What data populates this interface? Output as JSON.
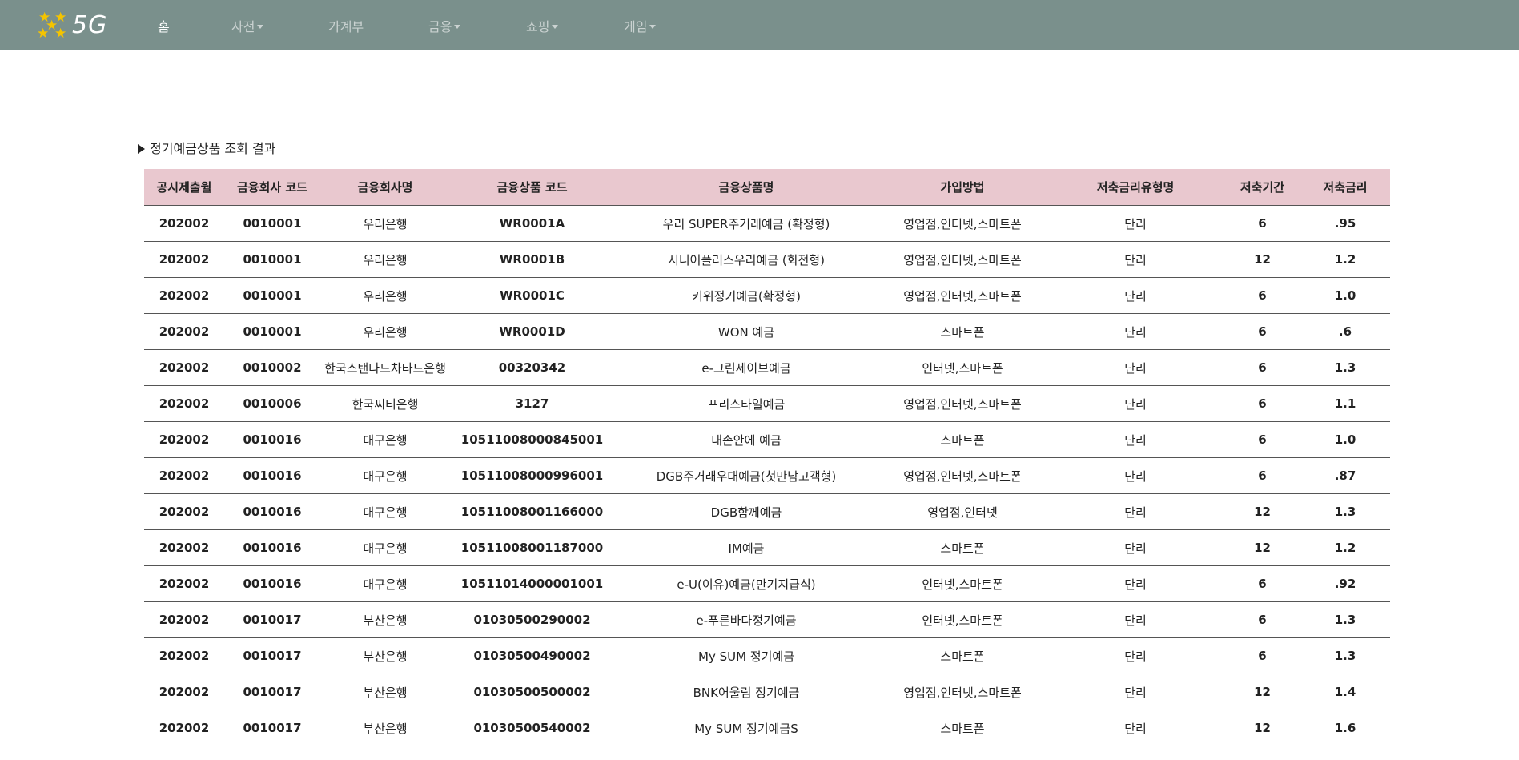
{
  "brand": {
    "name": "5G",
    "logo_icon": "stars-logo-icon"
  },
  "nav": {
    "items": [
      {
        "label": "홈",
        "active": true,
        "dropdown": false
      },
      {
        "label": "사전",
        "active": false,
        "dropdown": true
      },
      {
        "label": "가계부",
        "active": false,
        "dropdown": false
      },
      {
        "label": "금융",
        "active": false,
        "dropdown": true
      },
      {
        "label": "쇼핑",
        "active": false,
        "dropdown": true
      },
      {
        "label": "게임",
        "active": false,
        "dropdown": true
      }
    ]
  },
  "section": {
    "title": "정기예금상품 조회 결과"
  },
  "table": {
    "headers": [
      "공시제출월",
      "금융회사 코드",
      "금융회사명",
      "금융상품 코드",
      "금융상품명",
      "가입방법",
      "저축금리유형명",
      "저축기간",
      "저축금리"
    ],
    "rows": [
      [
        "202002",
        "0010001",
        "우리은행",
        "WR0001A",
        "우리 SUPER주거래예금 (확정형)",
        "영업점,인터넷,스마트폰",
        "단리",
        "6",
        ".95"
      ],
      [
        "202002",
        "0010001",
        "우리은행",
        "WR0001B",
        "시니어플러스우리예금 (회전형)",
        "영업점,인터넷,스마트폰",
        "단리",
        "12",
        "1.2"
      ],
      [
        "202002",
        "0010001",
        "우리은행",
        "WR0001C",
        "키위정기예금(확정형)",
        "영업점,인터넷,스마트폰",
        "단리",
        "6",
        "1.0"
      ],
      [
        "202002",
        "0010001",
        "우리은행",
        "WR0001D",
        "WON 예금",
        "스마트폰",
        "단리",
        "6",
        ".6"
      ],
      [
        "202002",
        "0010002",
        "한국스탠다드차타드은행",
        "00320342",
        "e-그린세이브예금",
        "인터넷,스마트폰",
        "단리",
        "6",
        "1.3"
      ],
      [
        "202002",
        "0010006",
        "한국씨티은행",
        "3127",
        "프리스타일예금",
        "영업점,인터넷,스마트폰",
        "단리",
        "6",
        "1.1"
      ],
      [
        "202002",
        "0010016",
        "대구은행",
        "10511008000845001",
        "내손안에 예금",
        "스마트폰",
        "단리",
        "6",
        "1.0"
      ],
      [
        "202002",
        "0010016",
        "대구은행",
        "10511008000996001",
        "DGB주거래우대예금(첫만남고객형)",
        "영업점,인터넷,스마트폰",
        "단리",
        "6",
        ".87"
      ],
      [
        "202002",
        "0010016",
        "대구은행",
        "10511008001166000",
        "DGB함께예금",
        "영업점,인터넷",
        "단리",
        "12",
        "1.3"
      ],
      [
        "202002",
        "0010016",
        "대구은행",
        "10511008001187000",
        "IM예금",
        "스마트폰",
        "단리",
        "12",
        "1.2"
      ],
      [
        "202002",
        "0010016",
        "대구은행",
        "10511014000001001",
        "e-U(이유)예금(만기지급식)",
        "인터넷,스마트폰",
        "단리",
        "6",
        ".92"
      ],
      [
        "202002",
        "0010017",
        "부산은행",
        "01030500290002",
        "e-푸른바다정기예금",
        "인터넷,스마트폰",
        "단리",
        "6",
        "1.3"
      ],
      [
        "202002",
        "0010017",
        "부산은행",
        "01030500490002",
        "My SUM 정기예금",
        "스마트폰",
        "단리",
        "6",
        "1.3"
      ],
      [
        "202002",
        "0010017",
        "부산은행",
        "01030500500002",
        "BNK어울림 정기예금",
        "영업점,인터넷,스마트폰",
        "단리",
        "12",
        "1.4"
      ],
      [
        "202002",
        "0010017",
        "부산은행",
        "01030500540002",
        "My SUM 정기예금S",
        "스마트폰",
        "단리",
        "12",
        "1.6"
      ]
    ]
  }
}
